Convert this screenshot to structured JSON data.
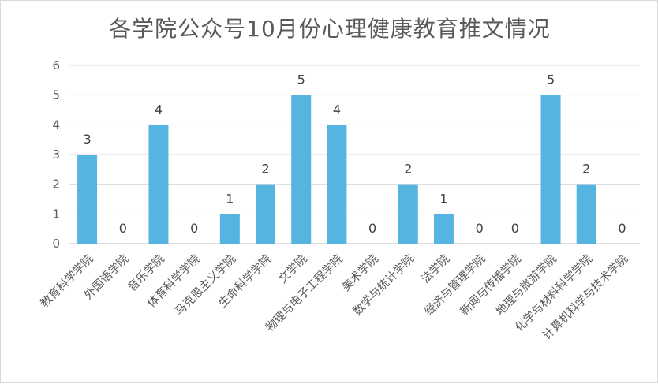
{
  "chart_data": {
    "type": "bar",
    "title": "各学院公众号10月份心理健康教育推文情况",
    "categories": [
      "教育科学学院",
      "外国语学院",
      "音乐学院",
      "体育科学学院",
      "马克思主义学院",
      "生命科学学院",
      "文学院",
      "物理与电子工程学院",
      "美术学院",
      "数学与统计学院",
      "法学院",
      "经济与管理学院",
      "新闻与传播学院",
      "地理与旅游学院",
      "化学与材料科学学院",
      "计算机科学与技术学院"
    ],
    "values": [
      3,
      0,
      4,
      0,
      1,
      2,
      5,
      4,
      0,
      2,
      1,
      0,
      0,
      5,
      2,
      0
    ],
    "ylim": [
      0,
      6
    ],
    "yticks": [
      0,
      1,
      2,
      3,
      4,
      5,
      6
    ],
    "grid": true,
    "legend": "none",
    "bar_color": "#56b4e0",
    "grid_color": "#d9d9d9",
    "data_labels": true
  }
}
